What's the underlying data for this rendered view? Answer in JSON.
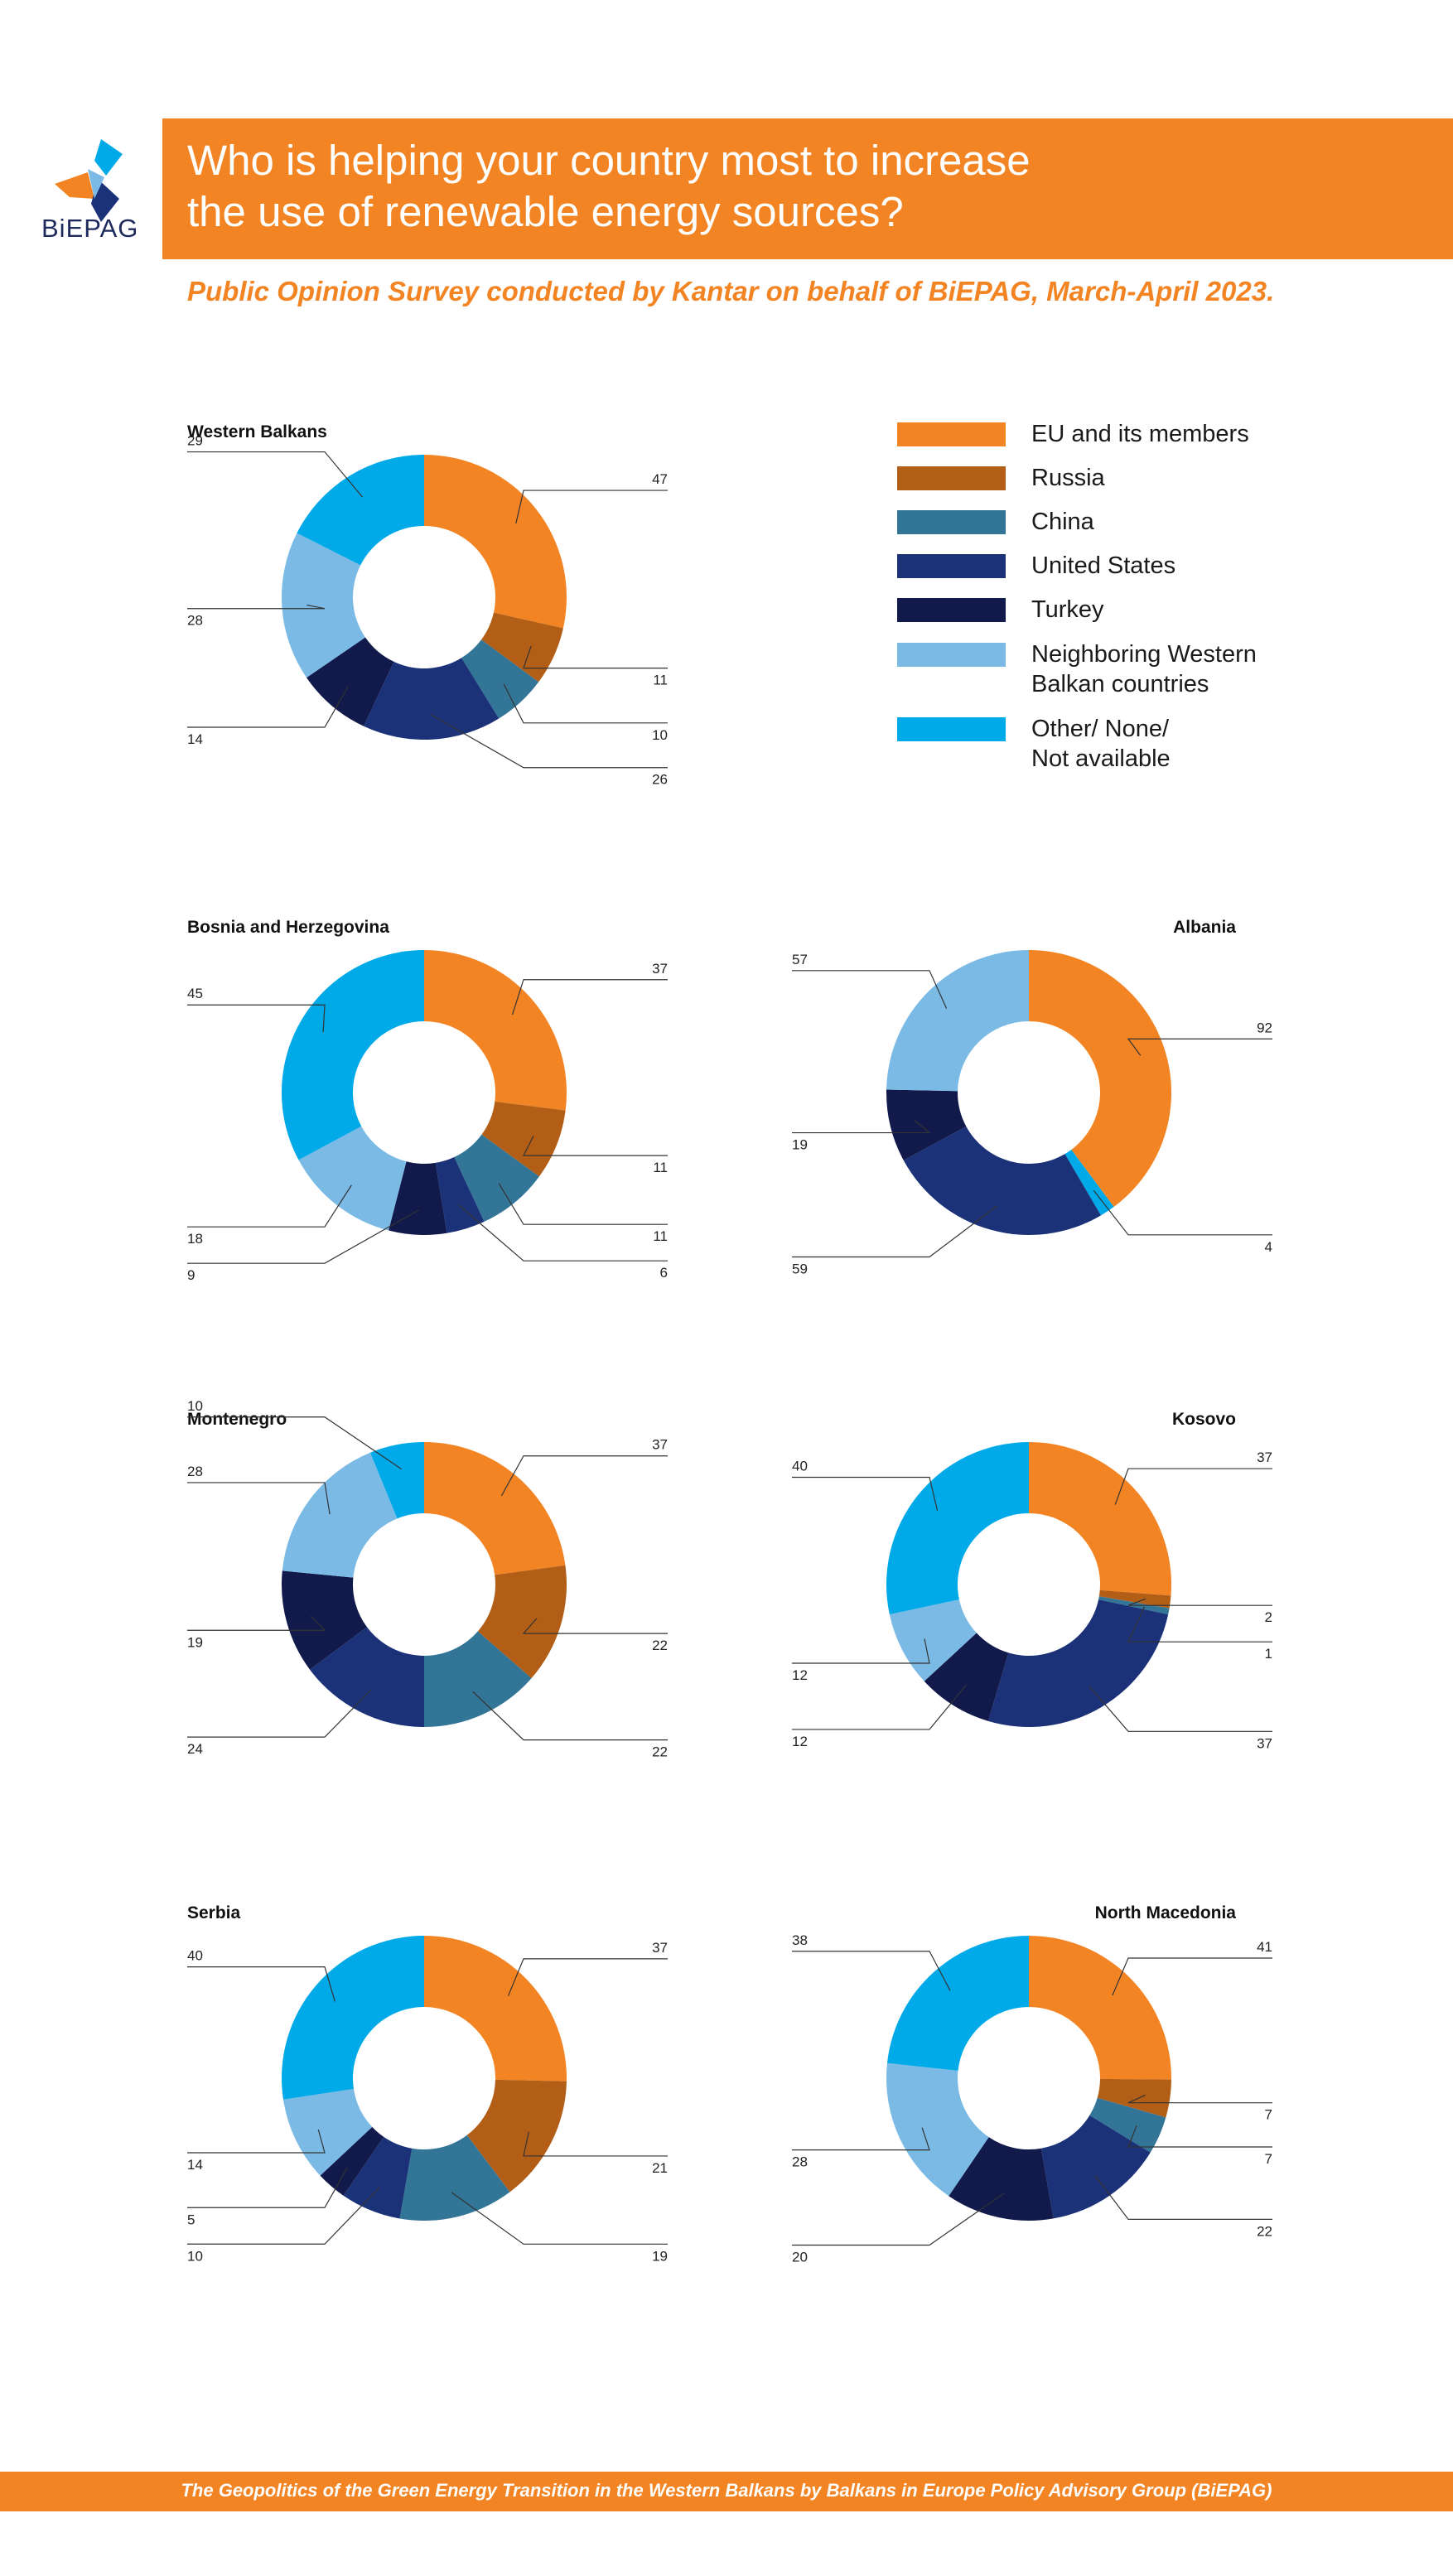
{
  "header": {
    "logo_text": "BiEPAG",
    "title_line1": "Who is helping your country most to increase",
    "title_line2": "the use of renewable energy sources?",
    "subtitle": "Public Opinion Survey conducted by Kantar on behalf of BiEPAG, March-April 2023."
  },
  "legend": [
    {
      "name": "EU and its members",
      "color": "#f38424"
    },
    {
      "name": "Russia",
      "color": "#b35e16"
    },
    {
      "name": "China",
      "color": "#337597"
    },
    {
      "name": "United States",
      "color": "#1b3278"
    },
    {
      "name": "Turkey",
      "color": "#111a4b"
    },
    {
      "name": "Neighboring Western Balkan countries",
      "color": "#7bbae5"
    },
    {
      "name": "Other/ None/ Not available",
      "color": "#00a9e7"
    }
  ],
  "legend_lines": [
    [
      "EU and its members"
    ],
    [
      "Russia"
    ],
    [
      "China"
    ],
    [
      "United States"
    ],
    [
      "Turkey"
    ],
    [
      "Neighboring Western",
      "Balkan countries"
    ],
    [
      "Other/ None/",
      "Not available"
    ]
  ],
  "chart_data": [
    {
      "type": "pie",
      "title": "Western Balkans",
      "categories": [
        "EU and its members",
        "Russia",
        "China",
        "United States",
        "Turkey",
        "Neighboring Western Balkan countries",
        "Other/ None/ Not available"
      ],
      "values": [
        47,
        11,
        10,
        26,
        14,
        28,
        29
      ]
    },
    {
      "type": "pie",
      "title": "Bosnia and Herzegovina",
      "categories": [
        "EU and its members",
        "Russia",
        "China",
        "United States",
        "Turkey",
        "Neighboring Western Balkan countries",
        "Other/ None/ Not available"
      ],
      "values": [
        37,
        11,
        11,
        6,
        9,
        18,
        45
      ]
    },
    {
      "type": "pie",
      "title": "Albania",
      "categories": [
        "EU and its members",
        "Other/ None/ Not available",
        "United States",
        "Turkey",
        "Neighboring Western Balkan countries"
      ],
      "values": [
        92,
        4,
        59,
        19,
        57
      ]
    },
    {
      "type": "pie",
      "title": "Montenegro",
      "categories": [
        "EU and its members",
        "Russia",
        "China",
        "United States",
        "Turkey",
        "Neighboring Western Balkan countries",
        "Other/ None/ Not available"
      ],
      "values": [
        37,
        22,
        22,
        24,
        19,
        28,
        10
      ]
    },
    {
      "type": "pie",
      "title": "Kosovo",
      "categories": [
        "EU and its members",
        "Russia",
        "China",
        "United States",
        "Turkey",
        "Neighboring Western Balkan countries",
        "Other/ None/ Not available"
      ],
      "values": [
        37,
        2,
        1,
        37,
        12,
        12,
        40
      ]
    },
    {
      "type": "pie",
      "title": "Serbia",
      "categories": [
        "EU and its members",
        "Russia",
        "China",
        "United States",
        "Turkey",
        "Neighboring Western Balkan countries",
        "Other/ None/ Not available"
      ],
      "values": [
        37,
        21,
        19,
        10,
        5,
        14,
        40
      ]
    },
    {
      "type": "pie",
      "title": "North Macedonia",
      "categories": [
        "EU and its members",
        "Russia",
        "China",
        "United States",
        "Turkey",
        "Neighboring Western Balkan countries",
        "Other/ None/ Not available"
      ],
      "values": [
        41,
        7,
        7,
        22,
        20,
        28,
        38
      ]
    }
  ],
  "footer": {
    "text": "The Geopolitics of the Green Energy Transition in the Western Balkans by Balkans in Europe Policy Advisory Group (BiEPAG)"
  }
}
